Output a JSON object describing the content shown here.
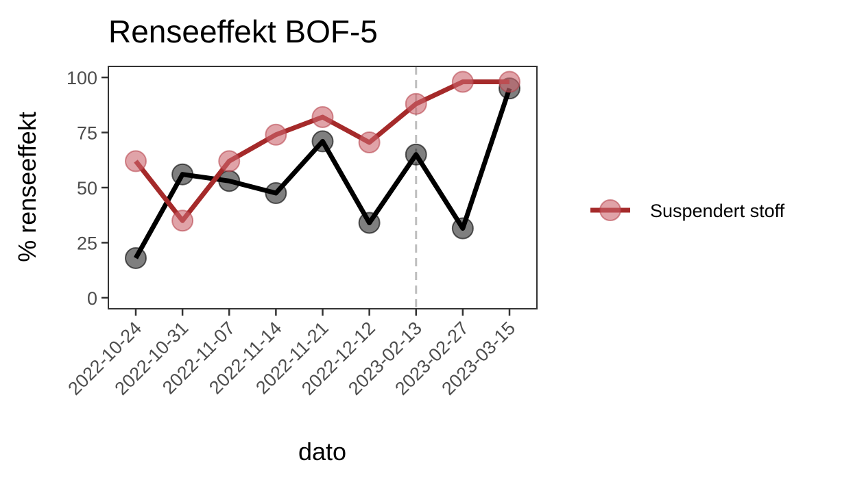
{
  "chart_data": {
    "type": "line",
    "title": "Renseeffekt BOF-5",
    "xlabel": "dato",
    "ylabel": "% renseeffekt",
    "categories": [
      "2022-10-24",
      "2022-10-31",
      "2022-11-07",
      "2022-11-14",
      "2022-11-21",
      "2022-12-12",
      "2023-02-13",
      "2023-02-27",
      "2023-03-15"
    ],
    "ylim": [
      -5,
      105
    ],
    "yticks": [
      0,
      25,
      50,
      75,
      100
    ],
    "grid": false,
    "legend_position": "right",
    "vline_category": "2023-02-13",
    "series": [
      {
        "color": "#000000",
        "values": [
          18,
          56,
          53,
          47.5,
          71,
          34,
          65,
          31.5,
          95
        ]
      },
      {
        "name": "Suspendert stoff",
        "color": "#a52a2a",
        "values": [
          62,
          35,
          62,
          74,
          82,
          70.5,
          88,
          98,
          98
        ]
      }
    ]
  }
}
